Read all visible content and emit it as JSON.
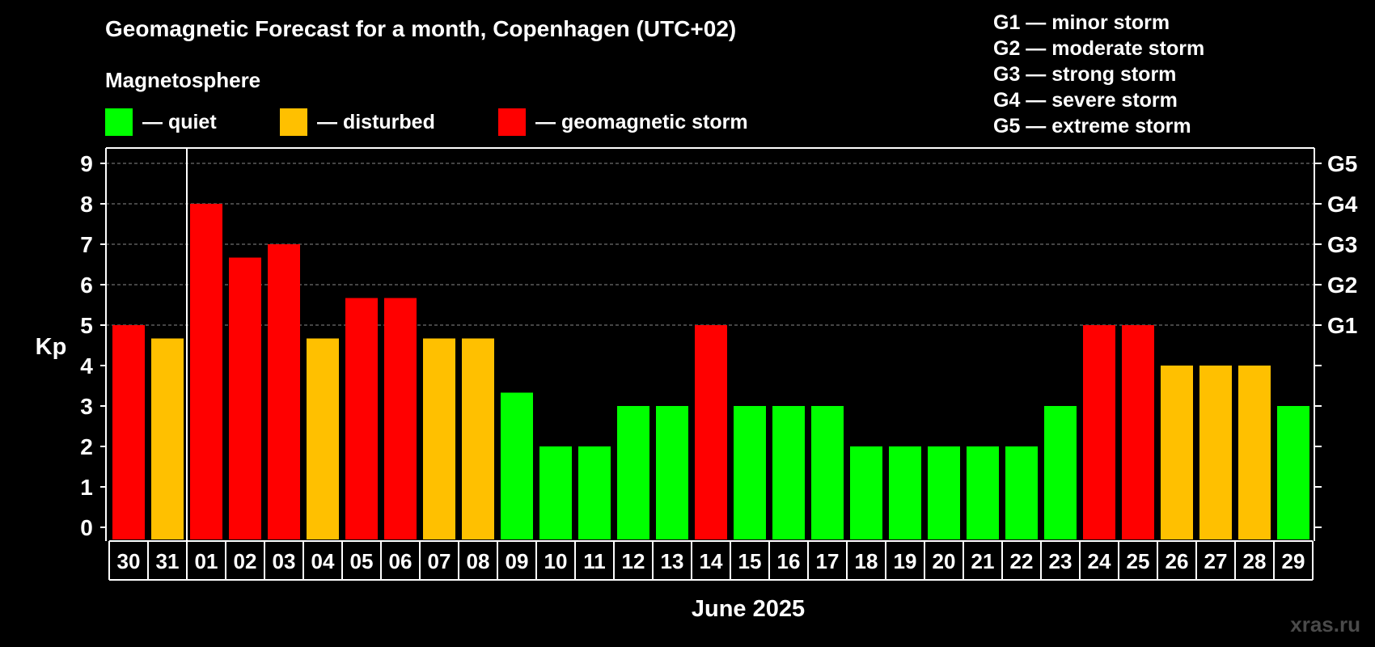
{
  "title": "Geomagnetic Forecast for a month, Copenhagen (UTC+02)",
  "magnetosphere_title": "Magnetosphere",
  "legend": [
    {
      "label": "— quiet",
      "color": "#00ff00"
    },
    {
      "label": "— disturbed",
      "color": "#ffc000"
    },
    {
      "label": "— geomagnetic storm",
      "color": "#ff0000"
    }
  ],
  "g_scale": [
    "G1 — minor storm",
    "G2 — moderate storm",
    "G3 — strong storm",
    "G4 — severe storm",
    "G5 — extreme storm"
  ],
  "watermark": "xras.ru",
  "colors": {
    "quiet": "#00ff00",
    "disturbed": "#ffc000",
    "storm": "#ff0000",
    "background": "#000000",
    "axis": "#ffffff"
  },
  "chart_data": {
    "type": "bar",
    "ylabel": "Kp",
    "xlabel": "June 2025",
    "ylim": [
      0,
      9
    ],
    "yticks": [
      "0",
      "1",
      "2",
      "3",
      "4",
      "5",
      "6",
      "7",
      "8",
      "9"
    ],
    "right_axis_labels": [
      {
        "label": "G1",
        "value": 5
      },
      {
        "label": "G2",
        "value": 6
      },
      {
        "label": "G3",
        "value": 7
      },
      {
        "label": "G4",
        "value": 8
      },
      {
        "label": "G5",
        "value": 9
      }
    ],
    "grid": "dashed horizontal lines at Kp 5-9",
    "categories": [
      "30",
      "31",
      "01",
      "02",
      "03",
      "04",
      "05",
      "06",
      "07",
      "08",
      "09",
      "10",
      "11",
      "12",
      "13",
      "14",
      "15",
      "16",
      "17",
      "18",
      "19",
      "20",
      "21",
      "22",
      "23",
      "24",
      "25",
      "26",
      "27",
      "28",
      "29"
    ],
    "values": [
      5,
      4.67,
      8,
      6.67,
      7,
      4.67,
      5.67,
      5.67,
      4.67,
      4.67,
      3.33,
      2,
      2,
      3,
      3,
      5,
      3,
      3,
      3,
      2,
      2,
      2,
      2,
      2,
      3,
      5,
      5,
      4,
      4,
      4,
      3
    ],
    "levels": [
      "storm",
      "disturbed",
      "storm",
      "storm",
      "storm",
      "disturbed",
      "storm",
      "storm",
      "disturbed",
      "disturbed",
      "quiet",
      "quiet",
      "quiet",
      "quiet",
      "quiet",
      "storm",
      "quiet",
      "quiet",
      "quiet",
      "quiet",
      "quiet",
      "quiet",
      "quiet",
      "quiet",
      "quiet",
      "storm",
      "storm",
      "disturbed",
      "disturbed",
      "disturbed",
      "quiet"
    ]
  }
}
